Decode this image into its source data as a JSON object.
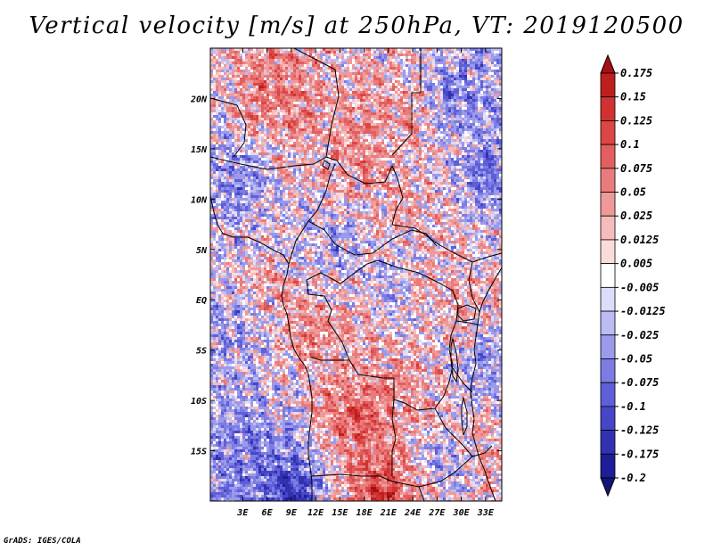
{
  "chart_data": {
    "type": "heatmap",
    "title": "Vertical velocity [m/s] at 250hPa, VT: 2019120500",
    "variable": "Vertical velocity",
    "units": "m/s",
    "level": "250hPa",
    "valid_time": "2019120500",
    "xlabel": "",
    "ylabel": "",
    "xlim": [
      -1.0,
      35.0
    ],
    "ylim": [
      -20.0,
      25.0
    ],
    "x_ticks": [
      {
        "value": 3,
        "label": "3E"
      },
      {
        "value": 6,
        "label": "6E"
      },
      {
        "value": 9,
        "label": "9E"
      },
      {
        "value": 12,
        "label": "12E"
      },
      {
        "value": 15,
        "label": "15E"
      },
      {
        "value": 18,
        "label": "18E"
      },
      {
        "value": 21,
        "label": "21E"
      },
      {
        "value": 24,
        "label": "24E"
      },
      {
        "value": 27,
        "label": "27E"
      },
      {
        "value": 30,
        "label": "30E"
      },
      {
        "value": 33,
        "label": "33E"
      }
    ],
    "y_ticks": [
      {
        "value": 20,
        "label": "20N"
      },
      {
        "value": 15,
        "label": "15N"
      },
      {
        "value": 10,
        "label": "10N"
      },
      {
        "value": 5,
        "label": "5N"
      },
      {
        "value": 0,
        "label": "EQ"
      },
      {
        "value": -5,
        "label": "5S"
      },
      {
        "value": -10,
        "label": "10S"
      },
      {
        "value": -15,
        "label": "15S"
      }
    ],
    "colorbar": {
      "levels": [
        "0.175",
        "0.15",
        "0.125",
        "0.1",
        "0.075",
        "0.05",
        "0.025",
        "0.0125",
        "0.005",
        "-0.005",
        "-0.0125",
        "-0.025",
        "-0.05",
        "-0.075",
        "-0.1",
        "-0.125",
        "-0.175",
        "-0.2"
      ],
      "colors": [
        "#a50f15",
        "#be1e1e",
        "#d03232",
        "#dc4646",
        "#e25f5f",
        "#e87c7c",
        "#ef9a9a",
        "#f6bcbc",
        "#fbdcdc",
        "#ffffff",
        "#dcdcfb",
        "#bcbcf4",
        "#9a9aea",
        "#7c7ce2",
        "#5f5fd8",
        "#4646c8",
        "#3232b0",
        "#1e1e98",
        "#14147c"
      ]
    },
    "field_regions": [
      {
        "lon": 7,
        "lat": 20,
        "w": 0.08
      },
      {
        "lon": 22,
        "lat": 18,
        "w": 0.05
      },
      {
        "lon": 30,
        "lat": 20,
        "w": -0.07
      },
      {
        "lon": 33,
        "lat": 12,
        "w": -0.08
      },
      {
        "lon": 2,
        "lat": 12,
        "w": -0.06
      },
      {
        "lon": 14,
        "lat": 6,
        "w": -0.05
      },
      {
        "lon": 24,
        "lat": 10,
        "w": 0.04
      },
      {
        "lon": 18,
        "lat": 14,
        "w": 0.06
      },
      {
        "lon": 6,
        "lat": 2,
        "w": 0.03
      },
      {
        "lon": 11,
        "lat": -3,
        "w": 0.07
      },
      {
        "lon": 22,
        "lat": 1,
        "w": -0.03
      },
      {
        "lon": 30,
        "lat": -1,
        "w": 0.05
      },
      {
        "lon": 33,
        "lat": -6,
        "w": -0.06
      },
      {
        "lon": 17,
        "lat": -12,
        "w": 0.12
      },
      {
        "lon": 24,
        "lat": -9,
        "w": 0.05
      },
      {
        "lon": 4,
        "lat": -14,
        "w": -0.07
      },
      {
        "lon": 9,
        "lat": -19,
        "w": -0.15
      },
      {
        "lon": 20,
        "lat": -19,
        "w": 0.14
      },
      {
        "lon": 28,
        "lat": -16,
        "w": -0.05
      },
      {
        "lon": 33,
        "lat": -15,
        "w": 0.05
      },
      {
        "lon": 2,
        "lat": -3,
        "w": -0.05
      },
      {
        "lon": 27,
        "lat": 5,
        "w": 0.02
      }
    ]
  },
  "footer": "GrADS: IGES/COLA"
}
